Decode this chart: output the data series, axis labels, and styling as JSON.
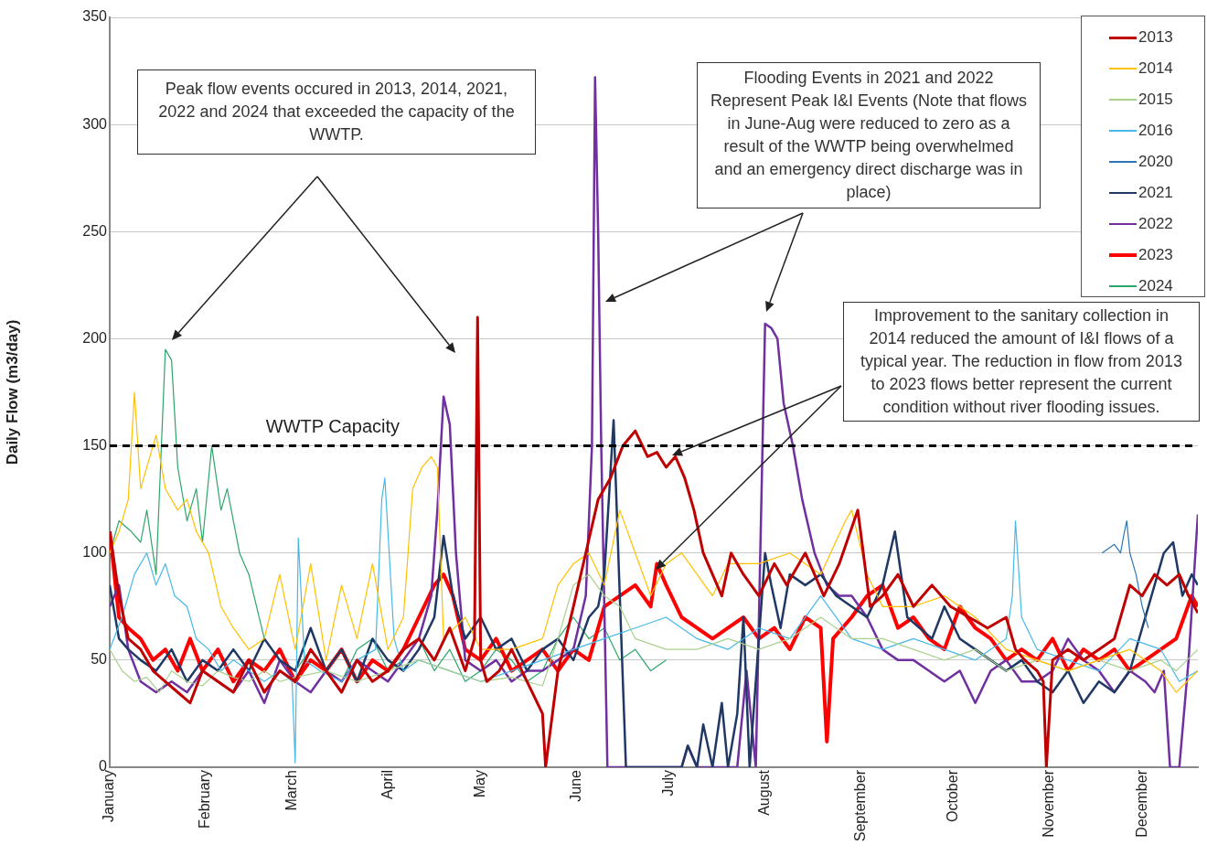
{
  "chart_data": {
    "type": "line",
    "ylabel": "Daily Flow (m3/day)",
    "xlim": [
      "--01-01",
      "--12-19"
    ],
    "xticks": [
      {
        "value": "--01-01",
        "label": "January"
      },
      {
        "value": "--02-01",
        "label": "February"
      },
      {
        "value": "--03-01",
        "label": "March"
      },
      {
        "value": "--04-01",
        "label": "April"
      },
      {
        "value": "--05-01",
        "label": "May"
      },
      {
        "value": "--06-01",
        "label": "June"
      },
      {
        "value": "--07-01",
        "label": "July"
      },
      {
        "value": "--08-01",
        "label": "August"
      },
      {
        "value": "--09-01",
        "label": "September"
      },
      {
        "value": "--10-01",
        "label": "October"
      },
      {
        "value": "--11-01",
        "label": "November"
      },
      {
        "value": "--12-01",
        "label": "December"
      }
    ],
    "ylim": [
      0,
      350
    ],
    "yticks": [
      0,
      50,
      100,
      150,
      200,
      250,
      300,
      350
    ],
    "grid": "y",
    "legend": "top right",
    "marker": "none",
    "line_style": "solid",
    "ref_lines": [
      {
        "axis": "y",
        "value": 150,
        "label": "WWTP Capacity",
        "color": "#000000",
        "line_style": "dashed"
      }
    ],
    "annotations": [
      "Peak flow events occured in 2013, 2014, 2021, 2022 and 2024 that exceeded the capacity of the WWTP.",
      "Flooding Events in 2021 and 2022 Represent Peak I&I Events (Note that flows in June-Aug were reduced to zero as a result of the WWTP being overwhelmed and an emergency direct discharge was in place)",
      "Improvement to the sanitary collection in 2014 reduced the amount of I&I flows of a typical year.  The reduction in flow from 2013 to 2023 flows better represent the current condition without river flooding issues."
    ],
    "series": [
      {
        "name": "2013",
        "color": "#c00000",
        "x": [
          "--01-01",
          "--01-04",
          "--01-07",
          "--01-11",
          "--01-15",
          "--01-19",
          "--01-23",
          "--01-27",
          "--01-31",
          "--02-05",
          "--02-10",
          "--02-15",
          "--02-20",
          "--02-25",
          "--03-02",
          "--03-07",
          "--03-12",
          "--03-17",
          "--03-22",
          "--03-27",
          "--04-01",
          "--04-06",
          "--04-11",
          "--04-16",
          "--04-21",
          "--04-26",
          "--04-29",
          "--04-30",
          "--05-01",
          "--05-03",
          "--05-07",
          "--05-11",
          "--05-16",
          "--05-21",
          "--05-22",
          "--05-26",
          "--05-31",
          "--06-04",
          "--06-08",
          "--06-12",
          "--06-16",
          "--06-20",
          "--06-24",
          "--06-27",
          "--06-30",
          "--07-03",
          "--07-06",
          "--07-09",
          "--07-12",
          "--07-15",
          "--07-18",
          "--07-21",
          "--07-25",
          "--07-30",
          "--08-04",
          "--08-08",
          "--08-14",
          "--08-20",
          "--08-25",
          "--08-31",
          "--09-04",
          "--09-08",
          "--09-13",
          "--09-18",
          "--09-24",
          "--09-30",
          "--10-06",
          "--10-12",
          "--10-18",
          "--10-21",
          "--10-24",
          "--10-28",
          "--10-30",
          "--10-31",
          "--11-02",
          "--11-07",
          "--11-12",
          "--11-17",
          "--11-22",
          "--11-27",
          "--12-01",
          "--12-05",
          "--12-09",
          "--12-13",
          "--12-16",
          "--12-19"
        ],
        "values": [
          110,
          80,
          60,
          55,
          45,
          40,
          35,
          30,
          45,
          40,
          35,
          50,
          35,
          45,
          40,
          55,
          45,
          35,
          50,
          40,
          45,
          55,
          60,
          50,
          65,
          45,
          60,
          210,
          50,
          40,
          45,
          55,
          40,
          25,
          0,
          45,
          75,
          100,
          125,
          135,
          150,
          157,
          145,
          147,
          140,
          145,
          135,
          120,
          100,
          90,
          80,
          100,
          90,
          80,
          95,
          85,
          100,
          80,
          95,
          120,
          75,
          80,
          90,
          75,
          85,
          75,
          70,
          65,
          70,
          55,
          50,
          45,
          40,
          0,
          50,
          55,
          50,
          55,
          60,
          85,
          80,
          90,
          85,
          90,
          80,
          72
        ]
      },
      {
        "name": "2014",
        "color": "#ffc000",
        "x": [
          "--01-01",
          "--01-04",
          "--01-07",
          "--01-09",
          "--01-11",
          "--01-13",
          "--01-16",
          "--01-19",
          "--01-23",
          "--01-26",
          "--01-29",
          "--02-02",
          "--02-06",
          "--02-10",
          "--02-15",
          "--02-20",
          "--02-25",
          "--03-02",
          "--03-07",
          "--03-12",
          "--03-17",
          "--03-22",
          "--03-27",
          "--04-01",
          "--04-06",
          "--04-09",
          "--04-12",
          "--04-15",
          "--04-17",
          "--04-19",
          "--04-26",
          "--05-01",
          "--05-11",
          "--05-21",
          "--05-26",
          "--05-31",
          "--06-05",
          "--06-10",
          "--06-15",
          "--06-20",
          "--06-25",
          "--06-30",
          "--07-05",
          "--07-10",
          "--07-15",
          "--07-20",
          "--07-30",
          "--08-09",
          "--08-19",
          "--08-27",
          "--08-29",
          "--09-03",
          "--09-08",
          "--09-18",
          "--09-28",
          "--10-08",
          "--10-18",
          "--10-28",
          "--11-07",
          "--11-17",
          "--11-27",
          "--12-07",
          "--12-12",
          "--12-19"
        ],
        "values": [
          100,
          110,
          125,
          175,
          130,
          140,
          155,
          130,
          120,
          125,
          110,
          100,
          75,
          65,
          55,
          60,
          90,
          55,
          95,
          50,
          85,
          60,
          95,
          55,
          70,
          130,
          140,
          145,
          140,
          60,
          70,
          55,
          55,
          60,
          85,
          95,
          100,
          85,
          120,
          100,
          80,
          95,
          100,
          90,
          80,
          95,
          95,
          100,
          90,
          115,
          120,
          90,
          75,
          75,
          80,
          70,
          55,
          50,
          45,
          50,
          55,
          45,
          35,
          45
        ]
      },
      {
        "name": "2015",
        "color": "#a9d18e",
        "x": [
          "--01-01",
          "--01-05",
          "--01-09",
          "--01-13",
          "--01-17",
          "--01-21",
          "--01-26",
          "--01-31",
          "--02-05",
          "--02-10",
          "--02-15",
          "--02-20",
          "--02-25",
          "--03-02",
          "--03-12",
          "--03-22",
          "--04-01",
          "--04-11",
          "--04-21",
          "--05-01",
          "--05-11",
          "--05-21",
          "--05-26",
          "--05-31",
          "--06-05",
          "--06-10",
          "--06-15",
          "--06-20",
          "--06-30",
          "--07-10",
          "--07-20",
          "--07-30",
          "--08-09",
          "--08-19",
          "--08-29",
          "--09-08",
          "--09-18",
          "--09-28",
          "--10-08",
          "--10-18",
          "--10-28",
          "--11-07",
          "--11-17",
          "--11-27",
          "--12-07",
          "--12-12",
          "--12-19"
        ],
        "values": [
          55,
          45,
          40,
          42,
          35,
          45,
          40,
          38,
          45,
          42,
          40,
          45,
          40,
          42,
          45,
          40,
          45,
          50,
          45,
          40,
          42,
          38,
          60,
          85,
          90,
          80,
          75,
          60,
          55,
          55,
          60,
          55,
          60,
          70,
          60,
          60,
          55,
          50,
          55,
          45,
          50,
          45,
          50,
          45,
          50,
          45,
          55
        ]
      },
      {
        "name": "2016",
        "color": "#47b8e8",
        "x": [
          "--01-01",
          "--01-05",
          "--01-09",
          "--01-13",
          "--01-16",
          "--01-19",
          "--01-22",
          "--01-26",
          "--01-29",
          "--02-02",
          "--02-06",
          "--02-10",
          "--02-15",
          "--02-20",
          "--02-25",
          "--03-01",
          "--03-02",
          "--03-03",
          "--03-05",
          "--03-10",
          "--03-17",
          "--03-22",
          "--03-28",
          "--03-30",
          "--03-31",
          "--04-03",
          "--04-06",
          "--04-11",
          "--04-21",
          "--05-01",
          "--05-11",
          "--05-21",
          "--05-31",
          "--06-10",
          "--06-20",
          "--06-30",
          "--07-10",
          "--07-20",
          "--07-30",
          "--08-09",
          "--08-19",
          "--08-29",
          "--09-08",
          "--09-18",
          "--09-28",
          "--10-08",
          "--10-18",
          "--10-20",
          "--10-21",
          "--10-23",
          "--10-28",
          "--11-07",
          "--11-17",
          "--11-27",
          "--12-07",
          "--12-13",
          "--12-19"
        ],
        "values": [
          55,
          70,
          90,
          100,
          85,
          95,
          80,
          75,
          60,
          55,
          45,
          50,
          45,
          40,
          45,
          40,
          2,
          107,
          50,
          45,
          40,
          50,
          55,
          125,
          135,
          60,
          45,
          50,
          45,
          40,
          45,
          50,
          55,
          60,
          65,
          70,
          60,
          55,
          65,
          60,
          80,
          60,
          55,
          60,
          55,
          50,
          60,
          80,
          115,
          70,
          55,
          50,
          45,
          60,
          55,
          40,
          45
        ]
      },
      {
        "name": "2020",
        "color": "#2e75b6",
        "x": [
          "--11-18",
          "--11-20",
          "--11-22",
          "--11-24",
          "--11-25",
          "--11-26",
          "--11-27",
          "--11-28",
          "--11-29",
          "--12-01",
          "--12-03"
        ],
        "values": [
          100,
          102,
          104,
          100,
          108,
          115,
          100,
          95,
          90,
          75,
          65
        ]
      },
      {
        "name": "2021",
        "color": "#1f3864",
        "x": [
          "--01-01",
          "--01-04",
          "--01-07",
          "--01-11",
          "--01-16",
          "--01-21",
          "--01-26",
          "--01-31",
          "--02-05",
          "--02-10",
          "--02-15",
          "--02-20",
          "--02-25",
          "--03-02",
          "--03-07",
          "--03-12",
          "--03-17",
          "--03-22",
          "--03-27",
          "--04-01",
          "--04-06",
          "--04-11",
          "--04-16",
          "--04-19",
          "--04-22",
          "--04-26",
          "--05-01",
          "--05-06",
          "--05-11",
          "--05-16",
          "--05-21",
          "--05-26",
          "--05-31",
          "--06-05",
          "--06-08",
          "--06-10",
          "--06-13",
          "--06-15",
          "--06-17",
          "--06-20",
          "--06-25",
          "--06-30",
          "--07-05",
          "--07-07",
          "--07-10",
          "--07-12",
          "--07-15",
          "--07-18",
          "--07-20",
          "--07-23",
          "--07-25",
          "--07-27",
          "--07-30",
          "--08-01",
          "--08-03",
          "--08-06",
          "--08-09",
          "--08-14",
          "--08-19",
          "--08-24",
          "--08-29",
          "--09-03",
          "--09-08",
          "--09-12",
          "--09-16",
          "--09-20",
          "--09-24",
          "--09-28",
          "--10-03",
          "--10-08",
          "--10-13",
          "--10-18",
          "--10-23",
          "--10-28",
          "--11-02",
          "--11-07",
          "--11-12",
          "--11-17",
          "--11-22",
          "--11-27",
          "--12-02",
          "--12-05",
          "--12-08",
          "--12-11",
          "--12-14",
          "--12-17",
          "--12-19"
        ],
        "values": [
          85,
          60,
          55,
          50,
          45,
          55,
          40,
          50,
          45,
          55,
          45,
          60,
          50,
          45,
          65,
          45,
          55,
          40,
          60,
          50,
          45,
          55,
          70,
          108,
          80,
          60,
          70,
          55,
          60,
          45,
          55,
          60,
          50,
          70,
          75,
          90,
          162,
          80,
          0,
          0,
          0,
          0,
          0,
          10,
          0,
          20,
          0,
          30,
          0,
          25,
          70,
          0,
          60,
          100,
          85,
          65,
          90,
          85,
          90,
          80,
          75,
          70,
          85,
          110,
          70,
          65,
          60,
          75,
          60,
          55,
          50,
          45,
          50,
          40,
          35,
          45,
          30,
          40,
          35,
          45,
          70,
          85,
          100,
          105,
          80,
          90,
          85
        ]
      },
      {
        "name": "2022",
        "color": "#7030a0",
        "x": [
          "--01-01",
          "--01-04",
          "--01-07",
          "--01-11",
          "--01-16",
          "--01-21",
          "--01-26",
          "--01-31",
          "--02-05",
          "--02-10",
          "--02-15",
          "--02-20",
          "--02-25",
          "--03-02",
          "--03-07",
          "--03-12",
          "--03-17",
          "--03-22",
          "--03-27",
          "--04-01",
          "--04-06",
          "--04-11",
          "--04-15",
          "--04-17",
          "--04-19",
          "--04-21",
          "--04-23",
          "--04-26",
          "--05-01",
          "--05-06",
          "--05-11",
          "--05-16",
          "--05-21",
          "--05-26",
          "--05-31",
          "--06-04",
          "--06-06",
          "--06-07",
          "--06-08",
          "--06-09",
          "--06-11",
          "--06-15",
          "--06-20",
          "--06-25",
          "--06-30",
          "--07-05",
          "--07-07",
          "--07-10",
          "--07-15",
          "--07-20",
          "--07-23",
          "--07-26",
          "--07-29",
          "--08-01",
          "--08-03",
          "--08-05",
          "--08-07",
          "--08-10",
          "--08-13",
          "--08-17",
          "--08-21",
          "--08-25",
          "--08-29",
          "--09-03",
          "--09-08",
          "--09-13",
          "--09-18",
          "--09-23",
          "--09-28",
          "--10-03",
          "--10-08",
          "--10-13",
          "--10-18",
          "--10-23",
          "--10-28",
          "--11-02",
          "--11-07",
          "--11-12",
          "--11-17",
          "--11-22",
          "--11-27",
          "--12-02",
          "--12-05",
          "--12-08",
          "--12-10",
          "--12-13",
          "--12-16",
          "--12-19"
        ],
        "values": [
          75,
          85,
          55,
          40,
          35,
          40,
          35,
          45,
          40,
          35,
          45,
          30,
          50,
          40,
          35,
          45,
          40,
          50,
          45,
          40,
          50,
          60,
          80,
          120,
          173,
          160,
          100,
          50,
          45,
          50,
          40,
          45,
          45,
          50,
          55,
          80,
          150,
          322,
          250,
          150,
          0,
          0,
          0,
          0,
          0,
          0,
          10,
          0,
          0,
          0,
          0,
          45,
          0,
          207,
          205,
          200,
          170,
          150,
          125,
          100,
          85,
          80,
          80,
          70,
          55,
          50,
          50,
          45,
          40,
          45,
          30,
          45,
          50,
          40,
          40,
          45,
          60,
          50,
          45,
          35,
          45,
          40,
          35,
          45,
          0,
          0,
          50,
          118
        ]
      },
      {
        "name": "2023",
        "color": "#ff0000",
        "x": [
          "--01-01",
          "--01-04",
          "--01-07",
          "--01-11",
          "--01-15",
          "--01-19",
          "--01-23",
          "--01-27",
          "--01-31",
          "--02-05",
          "--02-10",
          "--02-15",
          "--02-20",
          "--02-25",
          "--03-02",
          "--03-07",
          "--03-12",
          "--03-17",
          "--03-22",
          "--03-27",
          "--04-01",
          "--04-06",
          "--04-11",
          "--04-16",
          "--04-19",
          "--04-22",
          "--04-26",
          "--05-01",
          "--05-06",
          "--05-11",
          "--05-16",
          "--05-21",
          "--05-26",
          "--05-31",
          "--06-05",
          "--06-10",
          "--06-15",
          "--06-20",
          "--06-25",
          "--06-27",
          "--06-30",
          "--07-05",
          "--07-10",
          "--07-15",
          "--07-20",
          "--07-25",
          "--07-30",
          "--08-04",
          "--08-09",
          "--08-14",
          "--08-19",
          "--08-21",
          "--08-23",
          "--08-29",
          "--09-03",
          "--09-08",
          "--09-13",
          "--09-18",
          "--09-23",
          "--09-28",
          "--10-03",
          "--10-08",
          "--10-13",
          "--10-18",
          "--10-23",
          "--10-28",
          "--11-02",
          "--11-07",
          "--11-12",
          "--11-17",
          "--11-22",
          "--11-27",
          "--12-02",
          "--12-07",
          "--12-12",
          "--12-17",
          "--12-19"
        ],
        "values": [
          110,
          70,
          65,
          60,
          50,
          55,
          45,
          60,
          45,
          55,
          40,
          50,
          45,
          55,
          40,
          50,
          45,
          55,
          40,
          50,
          45,
          55,
          70,
          85,
          90,
          80,
          55,
          50,
          60,
          45,
          50,
          55,
          45,
          55,
          50,
          75,
          80,
          85,
          75,
          95,
          85,
          70,
          65,
          60,
          65,
          70,
          60,
          65,
          55,
          70,
          65,
          12,
          60,
          70,
          80,
          85,
          65,
          70,
          60,
          55,
          75,
          65,
          60,
          50,
          55,
          50,
          60,
          45,
          55,
          50,
          55,
          45,
          50,
          55,
          60,
          80,
          75
        ]
      },
      {
        "name": "2024",
        "color": "#2ea56a",
        "x": [
          "--01-01",
          "--01-04",
          "--01-08",
          "--01-11",
          "--01-13",
          "--01-16",
          "--01-19",
          "--01-21",
          "--01-23",
          "--01-26",
          "--01-29",
          "--01-31",
          "--02-03",
          "--02-06",
          "--02-08",
          "--02-12",
          "--02-15",
          "--02-20",
          "--02-25",
          "--03-02",
          "--03-07",
          "--03-12",
          "--03-17",
          "--03-22",
          "--03-27",
          "--04-01",
          "--04-06",
          "--04-11",
          "--04-16",
          "--04-21",
          "--04-26",
          "--05-01",
          "--05-06",
          "--05-11",
          "--05-16",
          "--05-21",
          "--05-26",
          "--05-31",
          "--06-05",
          "--06-10",
          "--06-15",
          "--06-20",
          "--06-25",
          "--06-30"
        ],
        "values": [
          100,
          115,
          110,
          105,
          120,
          90,
          195,
          190,
          140,
          115,
          130,
          105,
          150,
          120,
          130,
          100,
          90,
          60,
          50,
          45,
          55,
          45,
          40,
          55,
          60,
          45,
          50,
          60,
          45,
          55,
          40,
          45,
          55,
          50,
          40,
          45,
          60,
          70,
          60,
          65,
          50,
          55,
          45,
          50
        ]
      }
    ]
  }
}
